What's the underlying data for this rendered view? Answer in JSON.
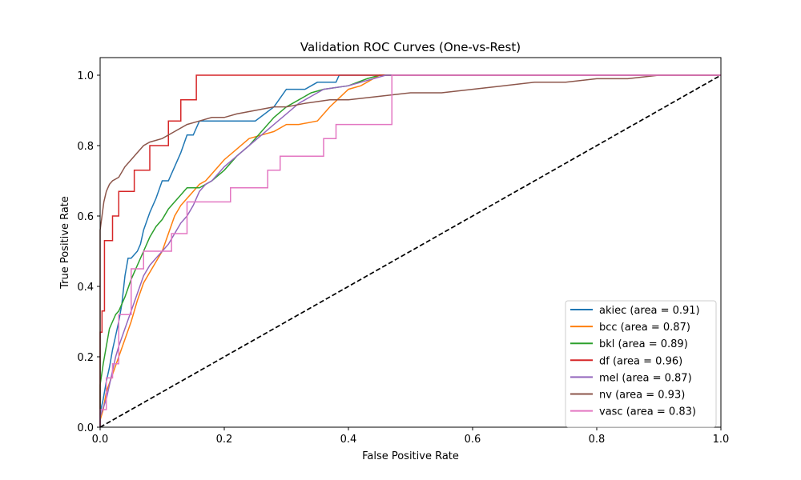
{
  "chart_data": {
    "type": "line",
    "title": "Validation ROC Curves (One-vs-Rest)",
    "xlabel": "False Positive Rate",
    "ylabel": "True Positive Rate",
    "xlim": [
      0,
      1.0
    ],
    "ylim": [
      0,
      1.05
    ],
    "xticks": [
      0.0,
      0.2,
      0.4,
      0.6,
      0.8,
      1.0
    ],
    "xtick_labels": [
      "0.0",
      "0.2",
      "0.4",
      "0.6",
      "0.8",
      "1.0"
    ],
    "yticks": [
      0.0,
      0.2,
      0.4,
      0.6,
      0.8,
      1.0
    ],
    "ytick_labels": [
      "0.0",
      "0.2",
      "0.4",
      "0.6",
      "0.8",
      "1.0"
    ],
    "grid": false,
    "legend_position": "bottom-right",
    "diagonal": {
      "style": "dashed",
      "color": "#000000",
      "x": [
        0,
        1
      ],
      "y": [
        0,
        1
      ]
    },
    "series": [
      {
        "name": "akiec (area = 0.91)",
        "color": "#1f77b4",
        "x": [
          0,
          0,
          0.005,
          0.01,
          0.015,
          0.02,
          0.025,
          0.03,
          0.035,
          0.04,
          0.045,
          0.05,
          0.06,
          0.065,
          0.07,
          0.08,
          0.09,
          0.1,
          0.11,
          0.12,
          0.13,
          0.14,
          0.15,
          0.16,
          0.17,
          0.2,
          0.25,
          0.28,
          0.3,
          0.33,
          0.35,
          0.38,
          0.385,
          0.4,
          0.44,
          0.5,
          1.0
        ],
        "y": [
          0,
          0.04,
          0.08,
          0.13,
          0.17,
          0.22,
          0.26,
          0.3,
          0.35,
          0.43,
          0.48,
          0.48,
          0.5,
          0.52,
          0.56,
          0.61,
          0.65,
          0.7,
          0.7,
          0.74,
          0.78,
          0.83,
          0.83,
          0.87,
          0.87,
          0.87,
          0.87,
          0.91,
          0.96,
          0.96,
          0.98,
          0.98,
          1.0,
          1.0,
          1.0,
          1.0,
          1.0
        ]
      },
      {
        "name": "bcc (area = 0.87)",
        "color": "#ff7f0e",
        "x": [
          0,
          0,
          0.005,
          0.01,
          0.02,
          0.03,
          0.04,
          0.05,
          0.06,
          0.07,
          0.08,
          0.09,
          0.1,
          0.11,
          0.12,
          0.13,
          0.14,
          0.15,
          0.16,
          0.17,
          0.18,
          0.2,
          0.22,
          0.24,
          0.26,
          0.28,
          0.3,
          0.32,
          0.35,
          0.37,
          0.4,
          0.42,
          0.45,
          0.5,
          1.0
        ],
        "y": [
          0,
          0.02,
          0.05,
          0.1,
          0.15,
          0.2,
          0.25,
          0.3,
          0.36,
          0.41,
          0.44,
          0.47,
          0.5,
          0.55,
          0.6,
          0.63,
          0.65,
          0.67,
          0.69,
          0.7,
          0.72,
          0.76,
          0.79,
          0.82,
          0.83,
          0.84,
          0.86,
          0.86,
          0.87,
          0.91,
          0.96,
          0.97,
          1.0,
          1.0,
          1.0
        ]
      },
      {
        "name": "bkl (area = 0.89)",
        "color": "#2ca02c",
        "x": [
          0,
          0,
          0.005,
          0.01,
          0.015,
          0.02,
          0.025,
          0.03,
          0.04,
          0.05,
          0.06,
          0.07,
          0.08,
          0.09,
          0.1,
          0.11,
          0.12,
          0.13,
          0.14,
          0.16,
          0.18,
          0.2,
          0.22,
          0.24,
          0.26,
          0.28,
          0.3,
          0.32,
          0.34,
          0.36,
          0.4,
          0.43,
          0.45,
          0.5,
          1.0
        ],
        "y": [
          0,
          0.12,
          0.18,
          0.23,
          0.28,
          0.3,
          0.32,
          0.33,
          0.37,
          0.42,
          0.46,
          0.5,
          0.54,
          0.57,
          0.59,
          0.62,
          0.64,
          0.66,
          0.68,
          0.68,
          0.7,
          0.73,
          0.77,
          0.8,
          0.84,
          0.88,
          0.91,
          0.93,
          0.95,
          0.96,
          0.97,
          0.99,
          1.0,
          1.0,
          1.0
        ]
      },
      {
        "name": "df (area = 0.96)",
        "color": "#d62728",
        "x": [
          0,
          0,
          0.003,
          0.003,
          0.007,
          0.007,
          0.02,
          0.02,
          0.03,
          0.03,
          0.055,
          0.055,
          0.06,
          0.06,
          0.08,
          0.08,
          0.11,
          0.11,
          0.13,
          0.13,
          0.155,
          0.155,
          1.0
        ],
        "y": [
          0,
          0.27,
          0.27,
          0.33,
          0.33,
          0.53,
          0.53,
          0.6,
          0.6,
          0.67,
          0.67,
          0.73,
          0.73,
          0.73,
          0.73,
          0.8,
          0.8,
          0.87,
          0.87,
          0.93,
          0.93,
          1.0,
          1.0
        ]
      },
      {
        "name": "mel (area = 0.87)",
        "color": "#9467bd",
        "x": [
          0,
          0,
          0.01,
          0.015,
          0.02,
          0.025,
          0.03,
          0.04,
          0.05,
          0.06,
          0.07,
          0.08,
          0.09,
          0.1,
          0.11,
          0.12,
          0.13,
          0.14,
          0.15,
          0.16,
          0.17,
          0.18,
          0.2,
          0.22,
          0.24,
          0.26,
          0.28,
          0.3,
          0.32,
          0.34,
          0.36,
          0.4,
          0.42,
          0.46,
          0.5,
          1.0
        ],
        "y": [
          0,
          0.03,
          0.08,
          0.12,
          0.16,
          0.2,
          0.23,
          0.28,
          0.33,
          0.38,
          0.43,
          0.46,
          0.48,
          0.5,
          0.52,
          0.55,
          0.58,
          0.6,
          0.63,
          0.67,
          0.69,
          0.7,
          0.74,
          0.77,
          0.8,
          0.83,
          0.86,
          0.89,
          0.92,
          0.94,
          0.96,
          0.97,
          0.98,
          1.0,
          1.0,
          1.0
        ]
      },
      {
        "name": "nv (area = 0.93)",
        "color": "#8c564b",
        "x": [
          0,
          0,
          0.003,
          0.006,
          0.01,
          0.015,
          0.02,
          0.03,
          0.04,
          0.05,
          0.06,
          0.07,
          0.08,
          0.1,
          0.12,
          0.14,
          0.16,
          0.18,
          0.2,
          0.22,
          0.25,
          0.28,
          0.3,
          0.33,
          0.37,
          0.4,
          0.45,
          0.5,
          0.55,
          0.6,
          0.65,
          0.7,
          0.75,
          0.8,
          0.85,
          0.9,
          0.95,
          1.0
        ],
        "y": [
          0,
          0.56,
          0.6,
          0.64,
          0.67,
          0.69,
          0.7,
          0.71,
          0.74,
          0.76,
          0.78,
          0.8,
          0.81,
          0.82,
          0.84,
          0.86,
          0.87,
          0.88,
          0.88,
          0.89,
          0.9,
          0.91,
          0.91,
          0.92,
          0.93,
          0.93,
          0.94,
          0.95,
          0.95,
          0.96,
          0.97,
          0.98,
          0.98,
          0.99,
          0.99,
          1.0,
          1.0,
          1.0
        ]
      },
      {
        "name": "vasc (area = 0.83)",
        "color": "#e377c2",
        "x": [
          0,
          0,
          0.01,
          0.01,
          0.02,
          0.02,
          0.03,
          0.03,
          0.05,
          0.05,
          0.07,
          0.07,
          0.115,
          0.115,
          0.14,
          0.14,
          0.17,
          0.17,
          0.21,
          0.21,
          0.27,
          0.27,
          0.29,
          0.29,
          0.36,
          0.36,
          0.37,
          0.37,
          0.38,
          0.38,
          0.47,
          0.47,
          1.0
        ],
        "y": [
          0,
          0.05,
          0.05,
          0.14,
          0.14,
          0.18,
          0.18,
          0.32,
          0.32,
          0.45,
          0.45,
          0.5,
          0.5,
          0.55,
          0.55,
          0.64,
          0.64,
          0.64,
          0.64,
          0.68,
          0.68,
          0.73,
          0.73,
          0.77,
          0.77,
          0.82,
          0.82,
          0.82,
          0.82,
          0.86,
          0.86,
          1.0,
          1.0
        ]
      }
    ]
  }
}
